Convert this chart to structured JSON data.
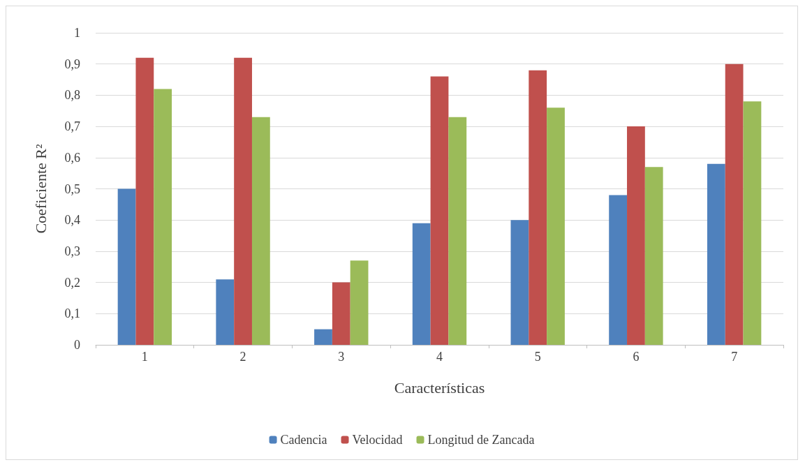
{
  "chart_data": {
    "type": "bar",
    "xlabel": "Características",
    "ylabel": "Coeficiente R²",
    "categories": [
      "1",
      "2",
      "3",
      "4",
      "5",
      "6",
      "7"
    ],
    "series": [
      {
        "name": "Cadencia",
        "color": "#4f81bd",
        "values": [
          0.5,
          0.21,
          0.05,
          0.39,
          0.4,
          0.48,
          0.58
        ]
      },
      {
        "name": "Velocidad",
        "color": "#c0504d",
        "values": [
          0.92,
          0.92,
          0.2,
          0.86,
          0.88,
          0.7,
          0.9
        ]
      },
      {
        "name": "Longitud de Zancada",
        "color": "#9bbb59",
        "values": [
          0.82,
          0.73,
          0.27,
          0.73,
          0.76,
          0.57,
          0.78
        ]
      }
    ],
    "ylim": [
      0,
      1
    ],
    "yticks": [
      0,
      {
        "value": 0.1,
        "label": "0,1"
      },
      {
        "value": 0.2,
        "label": "0,2"
      },
      {
        "value": 0.3,
        "label": "0,3"
      },
      {
        "value": 0.4,
        "label": "0,4"
      },
      {
        "value": 0.5,
        "label": "0,5"
      },
      {
        "value": 0.6,
        "label": "0,6"
      },
      {
        "value": 0.7,
        "label": "0,7"
      },
      {
        "value": 0.8,
        "label": "0,8"
      },
      {
        "value": 0.9,
        "label": "0,9"
      },
      1
    ],
    "grid": "y",
    "legend": "bottom"
  }
}
